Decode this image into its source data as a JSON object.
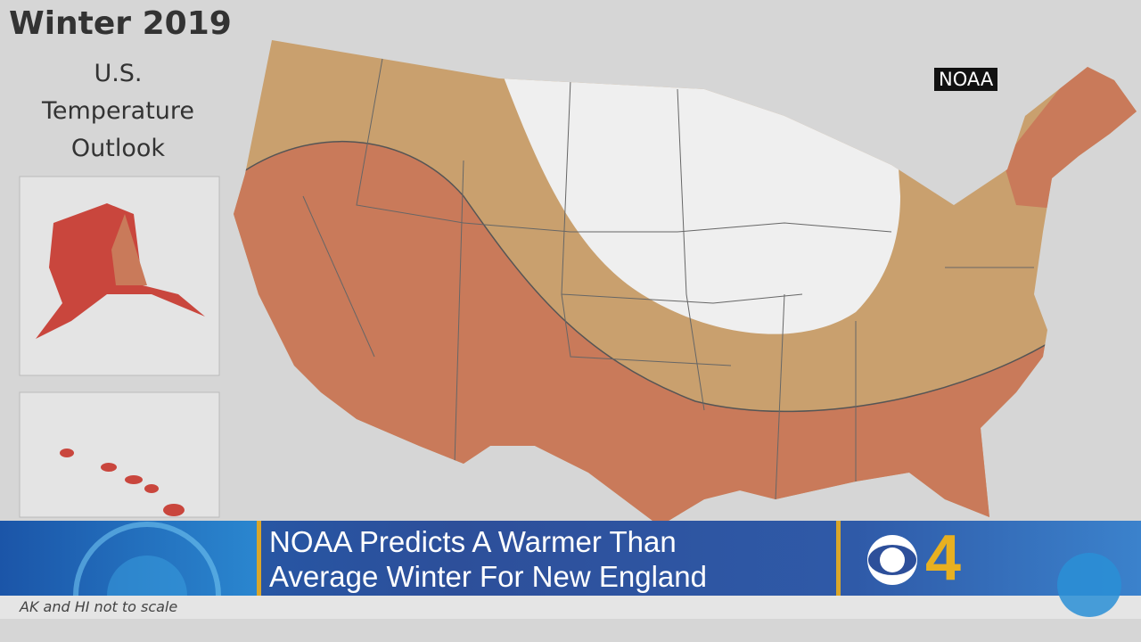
{
  "title": "Winter 2019",
  "subtitle_lines": [
    "U.S.",
    "Temperature",
    "Outlook"
  ],
  "source_badge": "NOAA",
  "banner": {
    "headline_line1": "NOAA Predicts A Warmer Than",
    "headline_line2": "Average Winter For New England",
    "station": "4"
  },
  "footnote": "AK and HI not to scale",
  "colors": {
    "above_normal_strong": "#c97a5a",
    "above_normal": "#c9a06e",
    "equal_chances": "#efefef",
    "alaska_strong": "#c9463d",
    "background": "#dcdcdc"
  }
}
